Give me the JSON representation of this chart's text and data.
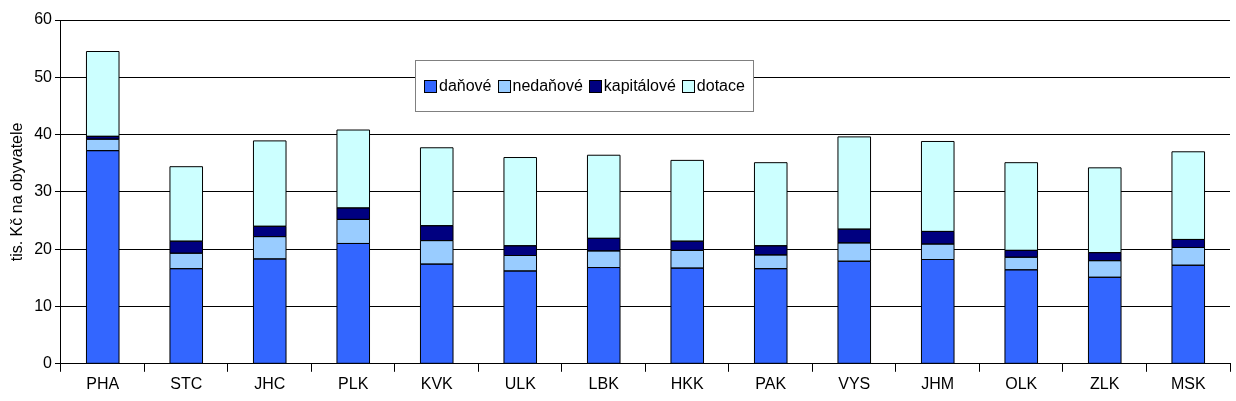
{
  "chart_data": {
    "type": "bar",
    "stacked": true,
    "ylabel": "tis. Kč na obyvatele",
    "categories": [
      "PHA",
      "STC",
      "JHC",
      "PLK",
      "KVK",
      "ULK",
      "LBK",
      "HKK",
      "PAK",
      "VYS",
      "JHM",
      "OLK",
      "ZLK",
      "MSK"
    ],
    "series": [
      {
        "name": "daňové",
        "color": "#3366ff",
        "values": [
          37.2,
          16.6,
          18.3,
          21.0,
          17.4,
          16.2,
          16.8,
          16.7,
          16.6,
          17.9,
          18.2,
          16.4,
          15.1,
          17.2
        ]
      },
      {
        "name": "nedaňové",
        "color": "#99ccff",
        "values": [
          2.0,
          2.7,
          3.9,
          4.2,
          4.1,
          2.7,
          2.9,
          3.1,
          2.4,
          3.2,
          2.7,
          2.2,
          2.9,
          3.1
        ]
      },
      {
        "name": "kapitálové",
        "color": "#000080",
        "values": [
          0.5,
          2.1,
          1.8,
          2.0,
          2.6,
          1.7,
          2.2,
          1.6,
          1.6,
          2.4,
          2.2,
          1.2,
          1.4,
          1.4
        ]
      },
      {
        "name": "dotace",
        "color": "#ccffff",
        "values": [
          14.8,
          13.0,
          14.9,
          13.6,
          13.6,
          15.4,
          14.5,
          14.1,
          14.5,
          16.1,
          15.7,
          15.3,
          14.8,
          15.3
        ]
      }
    ],
    "ylim": [
      0,
      60
    ],
    "yticks": [
      0,
      10,
      20,
      30,
      40,
      50,
      60
    ],
    "grid": "y",
    "legend": "top"
  }
}
